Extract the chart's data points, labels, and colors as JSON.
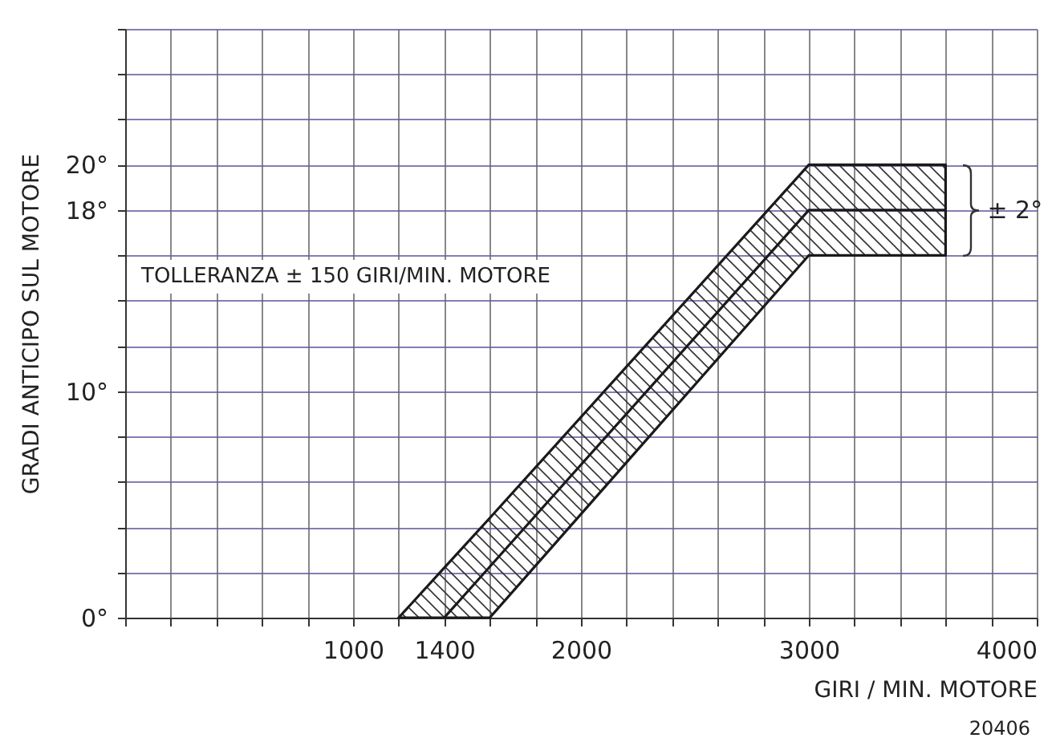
{
  "chart_data": {
    "type": "line",
    "xlabel": "GIRI / MIN. MOTORE",
    "ylabel": "GRADI ANTICIPO SUL MOTORE",
    "series": [
      {
        "color": "#1a1a1a",
        "x": [
          1200,
          1400,
          1600,
          3000,
          3600
        ],
        "values": [
          null,
          0,
          2.25,
          18,
          18
        ],
        "lower": [
          0,
          0,
          0,
          16,
          16
        ],
        "upper": [
          0,
          2.2,
          4.4,
          20,
          20
        ]
      }
    ],
    "xlim": [
      0,
      4000
    ],
    "ylim": [
      0,
      26
    ],
    "xticks": [
      {
        "value": 0,
        "label": null
      },
      {
        "value": 200,
        "label": null
      },
      {
        "value": 400,
        "label": null
      },
      {
        "value": 600,
        "label": null
      },
      {
        "value": 800,
        "label": null
      },
      1000,
      {
        "value": 1200,
        "label": null
      },
      1400,
      {
        "value": 1600,
        "label": null
      },
      {
        "value": 1800,
        "label": null
      },
      2000,
      {
        "value": 2200,
        "label": null
      },
      {
        "value": 2400,
        "label": null
      },
      {
        "value": 2600,
        "label": null
      },
      {
        "value": 2800,
        "label": null
      },
      3000,
      {
        "value": 3200,
        "label": null
      },
      {
        "value": 3400,
        "label": null
      },
      {
        "value": 3600,
        "label": null
      },
      {
        "value": 3800,
        "label": null
      },
      4000
    ],
    "yticks": [
      {
        "value": 0,
        "label": "0°"
      },
      {
        "value": 2,
        "label": null
      },
      {
        "value": 4,
        "label": null
      },
      {
        "value": 6,
        "label": null
      },
      {
        "value": 8,
        "label": null
      },
      {
        "value": 10,
        "label": "10°"
      },
      {
        "value": 12,
        "label": null
      },
      {
        "value": 14,
        "label": null
      },
      {
        "value": 16,
        "label": null
      },
      {
        "value": 18,
        "label": "18°"
      },
      {
        "value": 20,
        "label": "20°"
      },
      {
        "value": 22,
        "label": null
      },
      {
        "value": 24,
        "label": null
      },
      {
        "value": 26,
        "label": null
      }
    ],
    "grid": true,
    "marker": "none",
    "line_style": "solid",
    "annotations": [
      "TOLLERANZA ± 150 GIRI/MIN. MOTORE",
      {
        "text": "± 2°",
        "x": 3600,
        "y": 18
      },
      "20406"
    ]
  }
}
